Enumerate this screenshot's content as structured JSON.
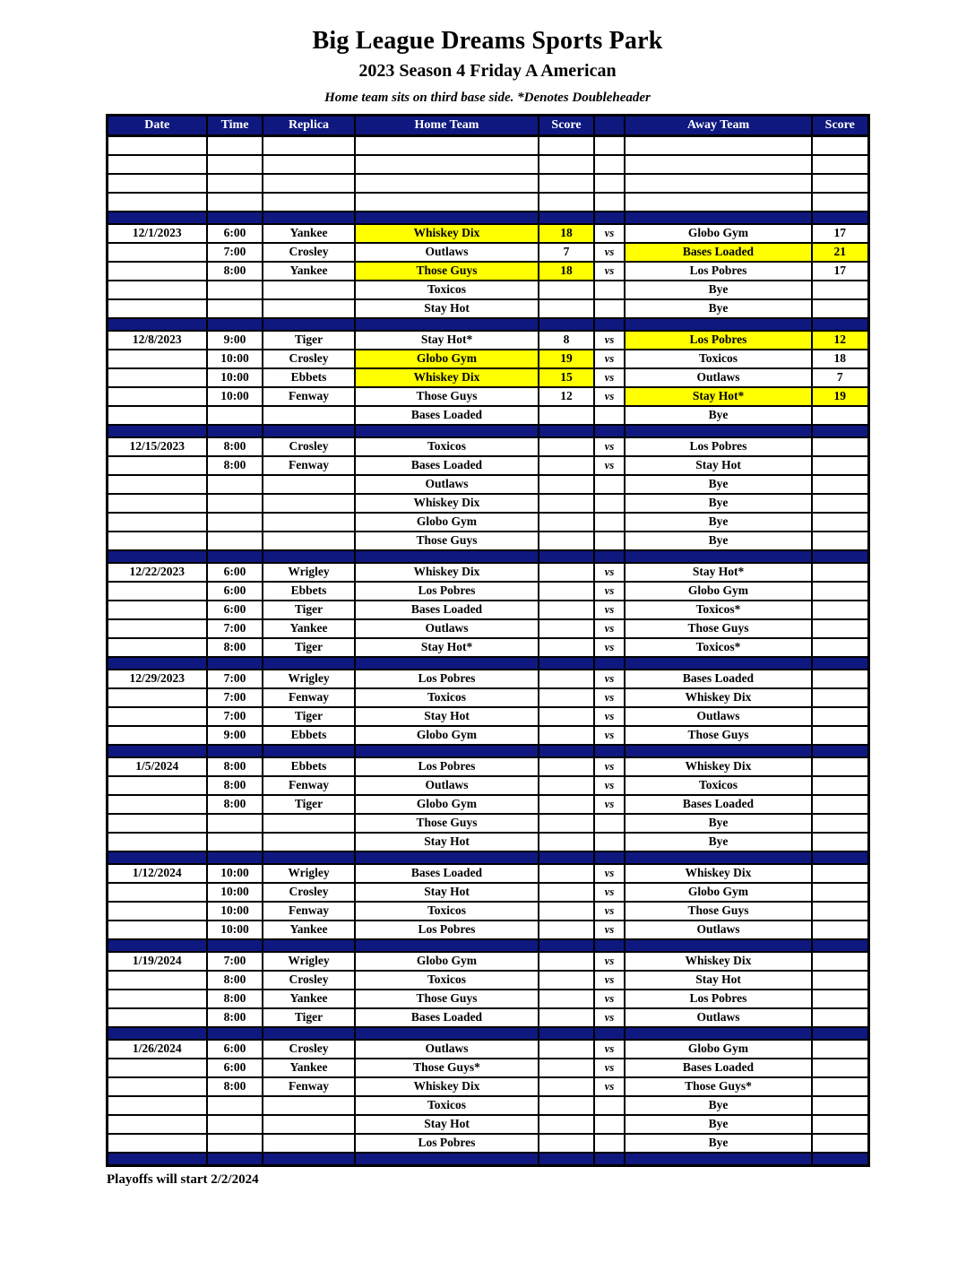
{
  "page": {
    "title": "Big League Dreams Sports Park",
    "subtitle": "2023 Season 4 Friday A American",
    "note": "Home team sits on third base side.  *Denotes Doubleheader",
    "footer": "Playoffs will start 2/2/2024"
  },
  "colors": {
    "navy": "#0E187F",
    "yellow": "#FFFF00",
    "header_text": "#FFFFFF"
  },
  "table": {
    "columns": [
      "Date",
      "Time",
      "Replica",
      "Home Team",
      "Score",
      "",
      "Away Team",
      "Score"
    ],
    "rows": [
      {
        "type": "empty"
      },
      {
        "type": "empty"
      },
      {
        "type": "empty"
      },
      {
        "type": "empty"
      },
      {
        "type": "separator"
      },
      {
        "type": "game",
        "date": "12/1/2023",
        "time": "6:00",
        "replica": "Yankee",
        "home": "Whiskey Dix",
        "home_score": "18",
        "vs": "vs",
        "away": "Globo Gym",
        "away_score": "17",
        "home_hl": true,
        "away_hl": false
      },
      {
        "type": "game",
        "date": "",
        "time": "7:00",
        "replica": "Crosley",
        "home": "Outlaws",
        "home_score": "7",
        "vs": "vs",
        "away": "Bases Loaded",
        "away_score": "21",
        "home_hl": false,
        "away_hl": true
      },
      {
        "type": "game",
        "date": "",
        "time": "8:00",
        "replica": "Yankee",
        "home": "Those Guys",
        "home_score": "18",
        "vs": "vs",
        "away": "Los Pobres",
        "away_score": "17",
        "home_hl": true,
        "away_hl": false
      },
      {
        "type": "game",
        "home": "Toxicos",
        "away": "Bye"
      },
      {
        "type": "game",
        "home": "Stay Hot",
        "away": "Bye"
      },
      {
        "type": "separator"
      },
      {
        "type": "game",
        "date": "12/8/2023",
        "time": "9:00",
        "replica": "Tiger",
        "home": "Stay Hot*",
        "home_score": "8",
        "vs": "vs",
        "away": "Los Pobres",
        "away_score": "12",
        "home_hl": false,
        "away_hl": true
      },
      {
        "type": "game",
        "date": "",
        "time": "10:00",
        "replica": "Crosley",
        "home": "Globo Gym",
        "home_score": "19",
        "vs": "vs",
        "away": "Toxicos",
        "away_score": "18",
        "home_hl": true,
        "away_hl": false
      },
      {
        "type": "game",
        "date": "",
        "time": "10:00",
        "replica": "Ebbets",
        "home": "Whiskey Dix",
        "home_score": "15",
        "vs": "vs",
        "away": "Outlaws",
        "away_score": "7",
        "home_hl": true,
        "away_hl": false
      },
      {
        "type": "game",
        "date": "",
        "time": "10:00",
        "replica": "Fenway",
        "home": "Those Guys",
        "home_score": "12",
        "vs": "vs",
        "away": "Stay Hot*",
        "away_score": "19",
        "home_hl": false,
        "away_hl": true
      },
      {
        "type": "game",
        "home": "Bases Loaded",
        "away": "Bye"
      },
      {
        "type": "separator"
      },
      {
        "type": "game",
        "date": "12/15/2023",
        "time": "8:00",
        "replica": "Crosley",
        "home": "Toxicos",
        "vs": "vs",
        "away": "Los Pobres"
      },
      {
        "type": "game",
        "date": "",
        "time": "8:00",
        "replica": "Fenway",
        "home": "Bases Loaded",
        "vs": "vs",
        "away": "Stay Hot"
      },
      {
        "type": "game",
        "home": "Outlaws",
        "away": "Bye"
      },
      {
        "type": "game",
        "home": "Whiskey Dix",
        "away": "Bye"
      },
      {
        "type": "game",
        "home": "Globo Gym",
        "away": "Bye"
      },
      {
        "type": "game",
        "home": "Those Guys",
        "away": "Bye"
      },
      {
        "type": "separator"
      },
      {
        "type": "game",
        "date": "12/22/2023",
        "time": "6:00",
        "replica": "Wrigley",
        "home": "Whiskey Dix",
        "vs": "vs",
        "away": "Stay Hot*"
      },
      {
        "type": "game",
        "date": "",
        "time": "6:00",
        "replica": "Ebbets",
        "home": "Los Pobres",
        "vs": "vs",
        "away": "Globo Gym"
      },
      {
        "type": "game",
        "date": "",
        "time": "6:00",
        "replica": "Tiger",
        "home": "Bases Loaded",
        "vs": "vs",
        "away": "Toxicos*"
      },
      {
        "type": "game",
        "date": "",
        "time": "7:00",
        "replica": "Yankee",
        "home": "Outlaws",
        "vs": "vs",
        "away": "Those Guys"
      },
      {
        "type": "game",
        "date": "",
        "time": "8:00",
        "replica": "Tiger",
        "home": "Stay Hot*",
        "vs": "vs",
        "away": "Toxicos*"
      },
      {
        "type": "separator"
      },
      {
        "type": "game",
        "date": "12/29/2023",
        "time": "7:00",
        "replica": "Wrigley",
        "home": "Los Pobres",
        "vs": "vs",
        "away": "Bases Loaded"
      },
      {
        "type": "game",
        "date": "",
        "time": "7:00",
        "replica": "Fenway",
        "home": "Toxicos",
        "vs": "vs",
        "away": "Whiskey Dix"
      },
      {
        "type": "game",
        "date": "",
        "time": "7:00",
        "replica": "Tiger",
        "home": "Stay Hot",
        "vs": "vs",
        "away": "Outlaws"
      },
      {
        "type": "game",
        "date": "",
        "time": "9:00",
        "replica": "Ebbets",
        "home": "Globo Gym",
        "vs": "vs",
        "away": "Those Guys"
      },
      {
        "type": "separator"
      },
      {
        "type": "game",
        "date": "1/5/2024",
        "time": "8:00",
        "replica": "Ebbets",
        "home": "Los Pobres",
        "vs": "vs",
        "away": "Whiskey Dix"
      },
      {
        "type": "game",
        "date": "",
        "time": "8:00",
        "replica": "Fenway",
        "home": "Outlaws",
        "vs": "vs",
        "away": "Toxicos"
      },
      {
        "type": "game",
        "date": "",
        "time": "8:00",
        "replica": "Tiger",
        "home": "Globo Gym",
        "vs": "vs",
        "away": "Bases Loaded"
      },
      {
        "type": "game",
        "home": "Those Guys",
        "away": "Bye"
      },
      {
        "type": "game",
        "home": "Stay Hot",
        "away": "Bye"
      },
      {
        "type": "separator"
      },
      {
        "type": "game",
        "date": "1/12/2024",
        "time": "10:00",
        "replica": "Wrigley",
        "home": "Bases Loaded",
        "vs": "vs",
        "away": "Whiskey Dix"
      },
      {
        "type": "game",
        "date": "",
        "time": "10:00",
        "replica": "Crosley",
        "home": "Stay Hot",
        "vs": "vs",
        "away": "Globo Gym"
      },
      {
        "type": "game",
        "date": "",
        "time": "10:00",
        "replica": "Fenway",
        "home": "Toxicos",
        "vs": "vs",
        "away": "Those Guys"
      },
      {
        "type": "game",
        "date": "",
        "time": "10:00",
        "replica": "Yankee",
        "home": "Los Pobres",
        "vs": "vs",
        "away": "Outlaws"
      },
      {
        "type": "separator"
      },
      {
        "type": "game",
        "date": "1/19/2024",
        "time": "7:00",
        "replica": "Wrigley",
        "home": "Globo Gym",
        "vs": "vs",
        "away": "Whiskey Dix"
      },
      {
        "type": "game",
        "date": "",
        "time": "8:00",
        "replica": "Crosley",
        "home": "Toxicos",
        "vs": "vs",
        "away": "Stay Hot"
      },
      {
        "type": "game",
        "date": "",
        "time": "8:00",
        "replica": "Yankee",
        "home": "Those Guys",
        "vs": "vs",
        "away": "Los Pobres"
      },
      {
        "type": "game",
        "date": "",
        "time": "8:00",
        "replica": "Tiger",
        "home": "Bases Loaded",
        "vs": "vs",
        "away": "Outlaws"
      },
      {
        "type": "separator"
      },
      {
        "type": "game",
        "date": "1/26/2024",
        "time": "6:00",
        "replica": "Crosley",
        "home": "Outlaws",
        "vs": "vs",
        "away": "Globo Gym"
      },
      {
        "type": "game",
        "date": "",
        "time": "6:00",
        "replica": "Yankee",
        "home": "Those Guys*",
        "vs": "vs",
        "away": "Bases Loaded"
      },
      {
        "type": "game",
        "date": "",
        "time": "8:00",
        "replica": "Fenway",
        "home": "Whiskey Dix",
        "vs": "vs",
        "away": "Those Guys*"
      },
      {
        "type": "game",
        "home": "Toxicos",
        "away": "Bye"
      },
      {
        "type": "game",
        "home": "Stay Hot",
        "away": "Bye"
      },
      {
        "type": "game",
        "home": "Los Pobres",
        "away": "Bye"
      },
      {
        "type": "separator"
      }
    ]
  }
}
